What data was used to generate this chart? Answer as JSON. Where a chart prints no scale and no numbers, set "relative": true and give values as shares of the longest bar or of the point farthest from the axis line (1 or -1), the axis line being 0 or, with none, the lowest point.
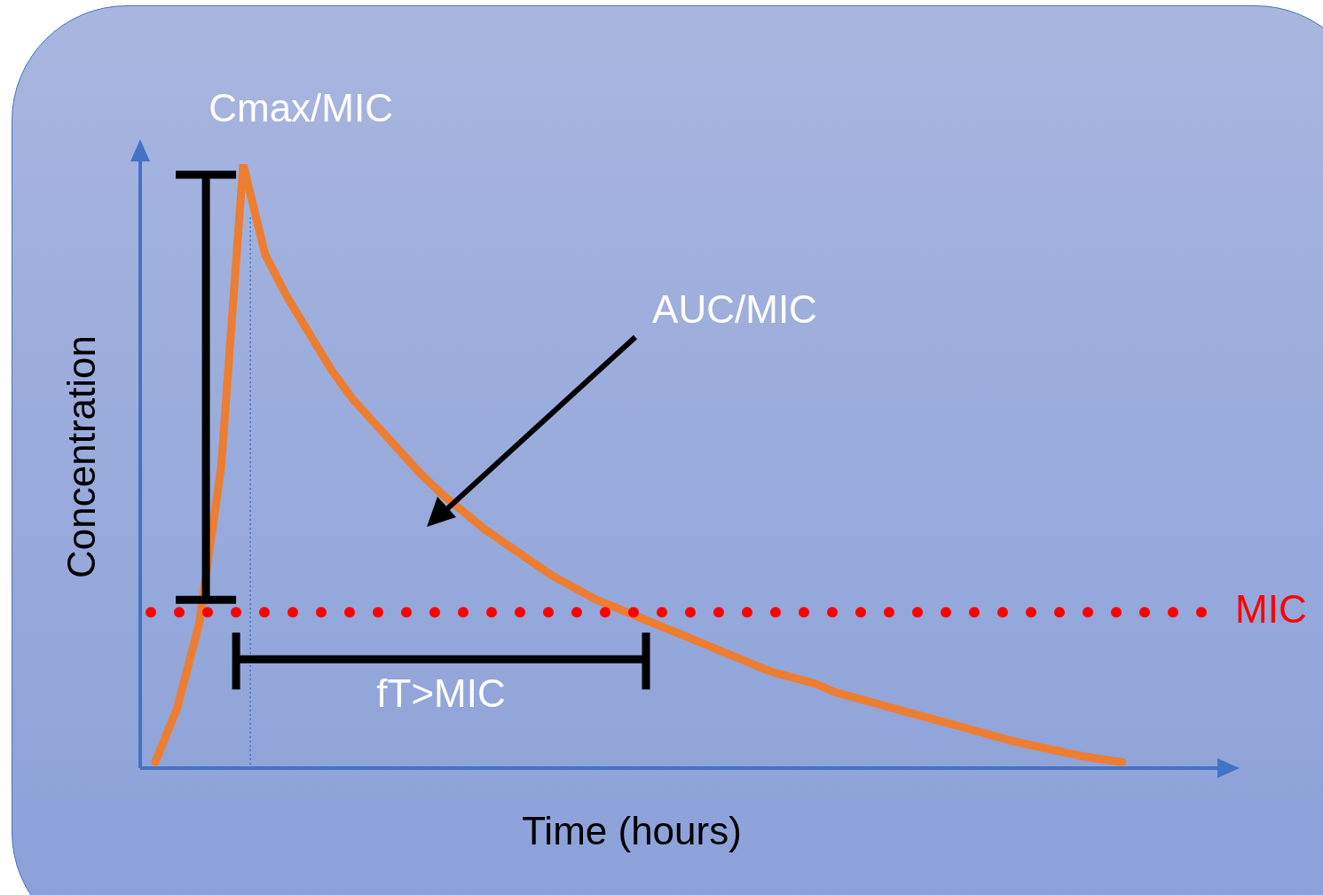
{
  "chart_data": {
    "type": "line",
    "relative": true,
    "xlabel": "Time (hours)",
    "ylabel": "Concentration",
    "categories": [
      null,
      null,
      null,
      null,
      null,
      null,
      null,
      null,
      null,
      null,
      null,
      null,
      null,
      null,
      null,
      null,
      null,
      null,
      null,
      null,
      null,
      null,
      null,
      null,
      null,
      null,
      null,
      null,
      null,
      null,
      null,
      null,
      null,
      null,
      null,
      null,
      null,
      null,
      null,
      null,
      null,
      null,
      null,
      null,
      null
    ],
    "series": [
      {
        "color": "#ed7d31",
        "values": [
          0.01,
          0.1,
          0.24,
          0.5,
          1,
          0.85,
          0.78,
          0.72,
          0.66,
          0.61,
          0.57,
          0.53,
          0.49,
          0.455,
          0.425,
          0.395,
          0.37,
          0.345,
          0.32,
          0.3,
          0.28,
          0.265,
          0.25,
          0.235,
          0.22,
          0.205,
          0.19,
          0.175,
          0.16,
          0.15,
          0.14,
          0.125,
          0.115,
          0.105,
          0.095,
          0.085,
          0.075,
          0.065,
          0.055,
          0.045,
          0.037,
          0.029,
          0.021,
          0.015,
          0.01
        ]
      }
    ],
    "ref_lines": [
      {
        "axis": "y",
        "value": 0.258,
        "label": "MIC",
        "color": "#ff0000",
        "line_style": "dotted"
      }
    ],
    "annotations": [
      "Cmax/MIC",
      "AUC/MIC",
      "fT>MIC"
    ],
    "legend": false,
    "marker": "none",
    "line_style": "solid"
  }
}
